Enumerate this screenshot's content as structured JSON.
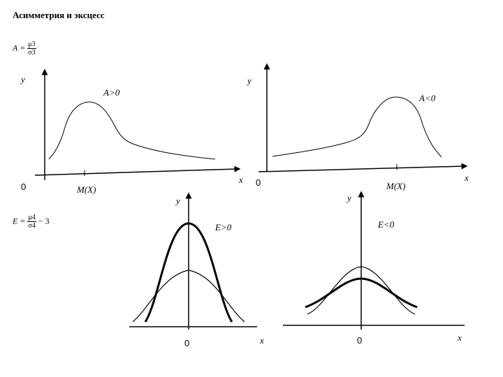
{
  "title": "Асимметрия и эксцесс",
  "formula_A": {
    "lhs": "A =",
    "num": "μ3",
    "den": "σ3"
  },
  "formula_E": {
    "lhs": "E =",
    "num": "μ4",
    "den": "σ4",
    "rhs": "− 3"
  },
  "panels": {
    "top_left": {
      "axis_y": "y",
      "axis_x": "x",
      "origin": "0",
      "tick": "M(X)",
      "condition": "A>0"
    },
    "top_right": {
      "axis_y": "y",
      "axis_x": "x",
      "origin": "0",
      "tick": "M(X)",
      "condition": "A<0"
    },
    "bottom_left": {
      "axis_y": "y",
      "axis_x": "x",
      "origin": "0",
      "condition": "E>0"
    },
    "bottom_right": {
      "axis_y": "y",
      "axis_x": "x",
      "origin": "0",
      "condition": "E<0"
    }
  }
}
